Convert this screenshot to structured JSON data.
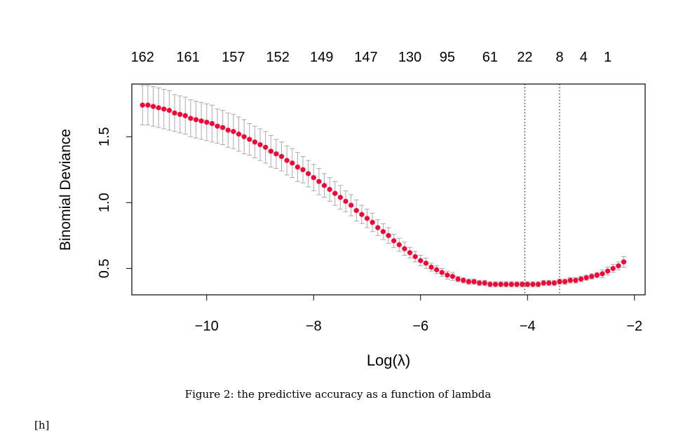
{
  "chart_data": {
    "type": "scatter",
    "xlabel": "Log(λ)",
    "ylabel": "Binomial Deviance",
    "xlim": [
      -11.4,
      -1.8
    ],
    "ylim": [
      0.3,
      1.9
    ],
    "x_ticks": [
      "−10",
      "−8",
      "−6",
      "−4",
      "−2"
    ],
    "x_tick_values": [
      -10,
      -8,
      -6,
      -4,
      -2
    ],
    "y_ticks": [
      "0.5",
      "1.0",
      "1.5"
    ],
    "y_tick_values": [
      0.5,
      1.0,
      1.5
    ],
    "top_axis_labels": [
      "162",
      "161",
      "157",
      "152",
      "149",
      "147",
      "130",
      "95",
      "61",
      "22",
      "8",
      "4",
      "1"
    ],
    "top_axis_values": [
      -11.2,
      -10.35,
      -9.5,
      -8.67,
      -7.85,
      -7.02,
      -6.2,
      -5.5,
      -4.7,
      -4.05,
      -3.4,
      -2.95,
      -2.5
    ],
    "vlines": [
      -4.05,
      -3.4
    ],
    "point_color": "#ff0033",
    "errorbar_color": "#aaaaaa",
    "x": [
      -11.2,
      -11.1,
      -11.0,
      -10.9,
      -10.8,
      -10.7,
      -10.6,
      -10.5,
      -10.4,
      -10.3,
      -10.2,
      -10.1,
      -10.0,
      -9.9,
      -9.8,
      -9.7,
      -9.6,
      -9.5,
      -9.4,
      -9.3,
      -9.2,
      -9.1,
      -9.0,
      -8.9,
      -8.8,
      -8.7,
      -8.6,
      -8.5,
      -8.4,
      -8.3,
      -8.2,
      -8.1,
      -8.0,
      -7.9,
      -7.8,
      -7.7,
      -7.6,
      -7.5,
      -7.4,
      -7.3,
      -7.2,
      -7.1,
      -7.0,
      -6.9,
      -6.8,
      -6.7,
      -6.6,
      -6.5,
      -6.4,
      -6.3,
      -6.2,
      -6.1,
      -6.0,
      -5.9,
      -5.8,
      -5.7,
      -5.6,
      -5.5,
      -5.4,
      -5.3,
      -5.2,
      -5.1,
      -5.0,
      -4.9,
      -4.8,
      -4.7,
      -4.6,
      -4.5,
      -4.4,
      -4.3,
      -4.2,
      -4.1,
      -4.0,
      -3.9,
      -3.8,
      -3.7,
      -3.6,
      -3.5,
      -3.4,
      -3.3,
      -3.2,
      -3.1,
      -3.0,
      -2.9,
      -2.8,
      -2.7,
      -2.6,
      -2.5,
      -2.4,
      -2.3,
      -2.2
    ],
    "y": [
      1.74,
      1.74,
      1.73,
      1.72,
      1.71,
      1.7,
      1.68,
      1.67,
      1.66,
      1.64,
      1.63,
      1.62,
      1.61,
      1.6,
      1.58,
      1.57,
      1.55,
      1.54,
      1.52,
      1.5,
      1.48,
      1.46,
      1.44,
      1.42,
      1.39,
      1.37,
      1.35,
      1.32,
      1.3,
      1.27,
      1.25,
      1.22,
      1.19,
      1.16,
      1.13,
      1.1,
      1.07,
      1.04,
      1.01,
      0.98,
      0.94,
      0.91,
      0.88,
      0.85,
      0.81,
      0.78,
      0.75,
      0.71,
      0.68,
      0.65,
      0.62,
      0.59,
      0.56,
      0.54,
      0.51,
      0.49,
      0.47,
      0.45,
      0.44,
      0.42,
      0.41,
      0.4,
      0.4,
      0.39,
      0.39,
      0.38,
      0.38,
      0.38,
      0.38,
      0.38,
      0.38,
      0.38,
      0.38,
      0.38,
      0.38,
      0.39,
      0.39,
      0.39,
      0.4,
      0.4,
      0.41,
      0.41,
      0.42,
      0.43,
      0.44,
      0.45,
      0.46,
      0.48,
      0.5,
      0.52,
      0.55
    ],
    "error_halfwidth": [
      0.15,
      0.15,
      0.15,
      0.15,
      0.15,
      0.15,
      0.14,
      0.14,
      0.14,
      0.14,
      0.14,
      0.14,
      0.14,
      0.14,
      0.13,
      0.13,
      0.13,
      0.13,
      0.13,
      0.13,
      0.12,
      0.12,
      0.12,
      0.12,
      0.12,
      0.11,
      0.11,
      0.11,
      0.11,
      0.11,
      0.1,
      0.1,
      0.1,
      0.1,
      0.09,
      0.09,
      0.09,
      0.09,
      0.08,
      0.08,
      0.08,
      0.07,
      0.07,
      0.07,
      0.06,
      0.06,
      0.06,
      0.05,
      0.05,
      0.05,
      0.04,
      0.04,
      0.04,
      0.04,
      0.03,
      0.03,
      0.03,
      0.03,
      0.03,
      0.02,
      0.02,
      0.02,
      0.02,
      0.02,
      0.02,
      0.02,
      0.02,
      0.02,
      0.02,
      0.02,
      0.02,
      0.02,
      0.02,
      0.02,
      0.02,
      0.02,
      0.02,
      0.02,
      0.02,
      0.02,
      0.02,
      0.02,
      0.02,
      0.02,
      0.02,
      0.02,
      0.03,
      0.03,
      0.03,
      0.03,
      0.04
    ]
  },
  "caption": "Figure 2: the predictive accuracy as a function of lambda",
  "float_spec": "[h]"
}
